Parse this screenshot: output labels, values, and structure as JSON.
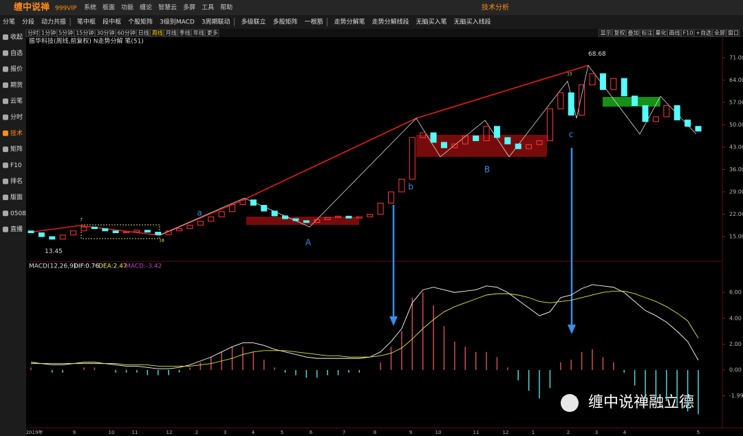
{
  "menubar": {
    "logo": "缠中说禅",
    "edition": "999VIP",
    "items": [
      "系统",
      "板面",
      "功能",
      "缠论",
      "智慧云",
      "多屏",
      "工具",
      "帮助"
    ],
    "center": "技术分析"
  },
  "toolbar": {
    "items": [
      "分笔",
      "分段",
      "动力共振",
      "笔中枢",
      "段中枢",
      "个股矩阵",
      "3级别MACD",
      "3周期联动",
      "多级联立",
      "多股矩阵",
      "一根筋",
      "走势分解笔",
      "走势分解线段",
      "无脑买入笔",
      "无脑买入线段"
    ]
  },
  "periods": [
    "分时",
    "1分钟",
    "5分钟",
    "15分钟",
    "30分钟",
    "60分钟",
    "日线",
    "周线",
    "月线",
    "季线",
    "年线",
    "更多"
  ],
  "tools": [
    "显示",
    "复权",
    "叠加",
    "标注",
    "量化",
    "画线",
    "F10",
    "+自选",
    "全屏",
    "窗口"
  ],
  "sidebar": [
    "收起",
    "自选",
    "报价",
    "期货",
    "云笔",
    "分时",
    "技术",
    "矩阵",
    "F10",
    "排名",
    "版面",
    "0508",
    "直播"
  ],
  "chart": {
    "type": "candlestick",
    "title": "振华科技(周线,前复权) N走势分解 笔(51)",
    "candles": {
      "open": [
        16.8,
        16.2,
        15.0,
        14.2,
        15.5,
        16.8,
        18.0,
        17.5,
        16.8,
        16.2,
        16.5,
        17.0,
        16.4,
        15.6,
        16.8,
        17.5,
        18.6,
        19.8,
        21.2,
        22.8,
        25.0,
        26.5,
        24.8,
        23.0,
        21.5,
        20.6,
        20.0,
        19.4,
        20.3,
        21.0,
        21.4,
        20.8,
        21.2,
        22.0,
        25.5,
        29.0,
        33.0,
        46.0,
        47.5,
        44.5,
        42.8,
        44.0,
        46.5,
        45.0,
        49.5,
        46.0,
        44.0,
        42.5,
        43.8,
        45.0,
        55.0,
        60.0,
        53.0,
        62.5,
        66.0,
        61.0,
        64.5,
        59.0,
        56.0,
        51.0,
        52.5,
        56.0,
        51.5,
        49.5
      ],
      "close": [
        16.2,
        15.0,
        14.2,
        15.5,
        16.8,
        18.0,
        17.5,
        16.8,
        16.2,
        16.5,
        17.0,
        16.4,
        15.6,
        16.8,
        17.5,
        18.6,
        19.8,
        21.2,
        22.8,
        25.0,
        26.5,
        24.8,
        23.0,
        21.5,
        20.6,
        20.0,
        19.4,
        20.3,
        21.0,
        21.4,
        20.8,
        21.2,
        22.0,
        25.5,
        29.0,
        33.0,
        46.0,
        47.5,
        44.5,
        42.8,
        44.0,
        46.5,
        45.0,
        49.5,
        46.0,
        44.0,
        42.5,
        43.8,
        45.0,
        55.0,
        60.0,
        53.0,
        62.5,
        66.0,
        61.0,
        64.5,
        59.0,
        56.0,
        51.0,
        52.5,
        56.0,
        51.5,
        49.5,
        48.0
      ]
    },
    "up_color": "#ff3c3c",
    "down_color": "#54fcfc",
    "ylim": [
      7.7,
      77.2
    ],
    "yticks": [
      {
        "value": 71,
        "label": "71.00"
      },
      {
        "value": 64,
        "label": "64.00"
      },
      {
        "value": 57,
        "label": "57.00"
      },
      {
        "value": 50,
        "label": "50.00"
      },
      {
        "value": 43,
        "label": "43.00"
      },
      {
        "value": 36,
        "label": "36.00"
      },
      {
        "value": 29,
        "label": "29.00"
      },
      {
        "value": 22,
        "label": "22.00"
      },
      {
        "value": 15,
        "label": "15.00"
      }
    ],
    "low_mark": 13.45,
    "high_mark": 68.68,
    "labels": [
      "a",
      "b",
      "c",
      "A",
      "B"
    ],
    "small_marks": [
      "7",
      "18",
      "15"
    ],
    "xlabels": [
      "2019年",
      "9",
      "10",
      "11",
      "12",
      "2",
      "3",
      "4",
      "5",
      "6",
      "7",
      "8",
      "9",
      "10",
      "11",
      "12",
      "1",
      "2",
      "3",
      "4",
      "5"
    ]
  },
  "macd": {
    "header": "MACD(12,26,9)",
    "dif_label": "DIF:0.76",
    "dea_label": "DEA:2.47",
    "macd_label": "MACD:-3.42",
    "dif_color": "#ffffff",
    "dea_color": "#e8e84a",
    "pos_color": "#d05050",
    "neg_color": "#54d8d8",
    "dif": [
      0.6,
      0.5,
      0.4,
      0.4,
      0.5,
      0.6,
      0.6,
      0.5,
      0.4,
      0.3,
      0.3,
      0.2,
      0.1,
      0.1,
      0.2,
      0.4,
      0.7,
      1.0,
      1.4,
      1.8,
      2.1,
      2.1,
      1.9,
      1.6,
      1.4,
      1.2,
      1.0,
      0.9,
      0.9,
      0.9,
      0.9,
      0.9,
      1.0,
      1.4,
      2.2,
      3.2,
      5.2,
      6.2,
      6.4,
      6.2,
      6.0,
      6.1,
      6.2,
      6.5,
      6.4,
      6.0,
      5.4,
      4.8,
      4.2,
      4.5,
      5.6,
      5.8,
      6.3,
      6.6,
      6.5,
      6.4,
      6.0,
      5.3,
      4.6,
      4.2,
      3.7,
      3.0,
      2.2,
      0.76
    ],
    "dea": [
      0.5,
      0.5,
      0.5,
      0.5,
      0.5,
      0.5,
      0.5,
      0.5,
      0.5,
      0.4,
      0.4,
      0.4,
      0.3,
      0.3,
      0.3,
      0.3,
      0.4,
      0.5,
      0.7,
      0.9,
      1.2,
      1.4,
      1.5,
      1.5,
      1.5,
      1.4,
      1.3,
      1.2,
      1.1,
      1.1,
      1.0,
      1.0,
      1.0,
      1.1,
      1.3,
      1.7,
      2.4,
      3.2,
      3.9,
      4.5,
      4.9,
      5.2,
      5.5,
      5.8,
      5.9,
      5.9,
      5.8,
      5.6,
      5.3,
      5.2,
      5.3,
      5.4,
      5.6,
      5.8,
      6.0,
      6.1,
      6.1,
      5.9,
      5.6,
      5.3,
      4.9,
      4.4,
      3.8,
      2.47
    ],
    "hist": [
      0.2,
      0,
      -0.2,
      -0.2,
      0,
      0.2,
      0.2,
      0,
      -0.2,
      -0.2,
      -0.2,
      -0.4,
      -0.4,
      -0.4,
      -0.2,
      0.2,
      0.6,
      1.0,
      1.4,
      1.8,
      1.8,
      1.4,
      0.8,
      0.2,
      -0.2,
      -0.4,
      -0.6,
      -0.6,
      -0.4,
      -0.4,
      -0.2,
      -0.2,
      0,
      0.6,
      1.8,
      3.0,
      5.6,
      6.0,
      5.0,
      3.4,
      2.2,
      1.8,
      1.4,
      1.4,
      1.0,
      0.2,
      -0.8,
      -1.6,
      -2.2,
      -1.4,
      0.6,
      0.8,
      1.4,
      1.6,
      1.0,
      0.6,
      -0.2,
      -1.2,
      -2.0,
      -2.2,
      -2.4,
      -2.8,
      -3.2,
      -3.42
    ],
    "ylim": [
      -4.36,
      8.3
    ],
    "yticks": [
      {
        "value": 6,
        "label": "6.00"
      },
      {
        "value": 4,
        "label": "4.00"
      },
      {
        "value": 2,
        "label": "2.00"
      },
      {
        "value": 0,
        "label": "0.00"
      },
      {
        "value": -1.99,
        "label": "-1.99"
      }
    ]
  },
  "watermark": "缠中说禅融立德"
}
